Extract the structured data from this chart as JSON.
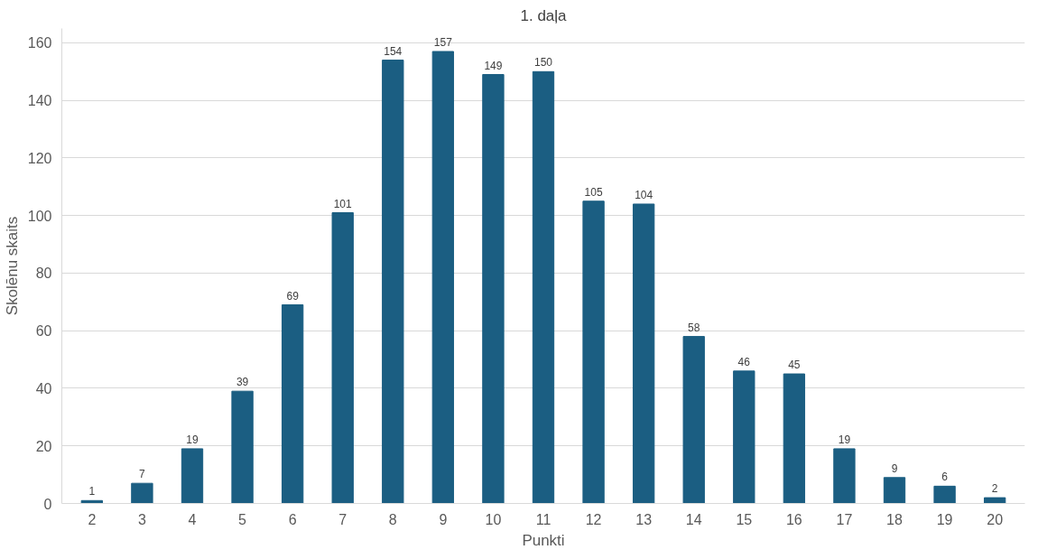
{
  "chart_data": {
    "type": "bar",
    "title": "1. daļa",
    "xlabel": "Punkti",
    "ylabel": "Skolēnu skaits",
    "categories": [
      "2",
      "3",
      "4",
      "5",
      "6",
      "7",
      "8",
      "9",
      "10",
      "11",
      "12",
      "13",
      "14",
      "15",
      "16",
      "17",
      "18",
      "19",
      "20"
    ],
    "values": [
      1,
      7,
      19,
      39,
      69,
      101,
      154,
      157,
      149,
      150,
      105,
      104,
      58,
      46,
      45,
      19,
      9,
      6,
      2
    ],
    "color": "#1b5e82",
    "ylim": [
      0,
      165
    ],
    "yticks": [
      0,
      20,
      40,
      60,
      80,
      100,
      120,
      140,
      160
    ],
    "grid": "y",
    "data_labels": true
  }
}
